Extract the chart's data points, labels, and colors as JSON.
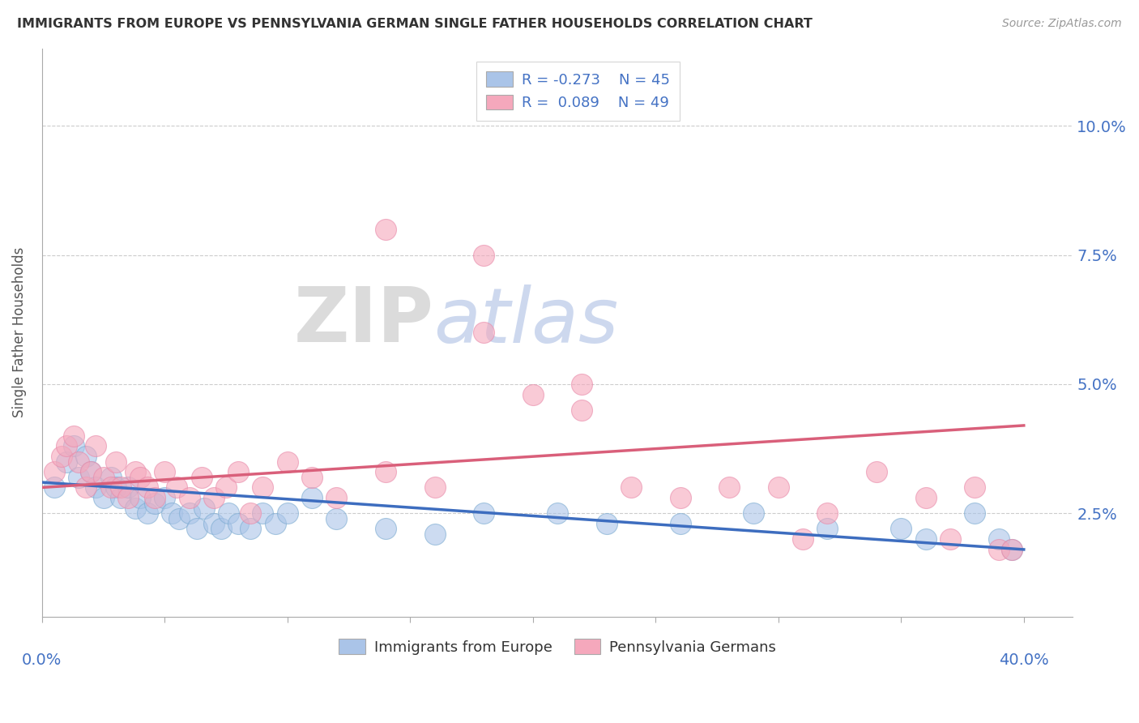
{
  "title": "IMMIGRANTS FROM EUROPE VS PENNSYLVANIA GERMAN SINGLE FATHER HOUSEHOLDS CORRELATION CHART",
  "source": "Source: ZipAtlas.com",
  "ylabel": "Single Father Households",
  "y_tick_labels": [
    "2.5%",
    "5.0%",
    "7.5%",
    "10.0%"
  ],
  "y_tick_values": [
    0.025,
    0.05,
    0.075,
    0.1
  ],
  "x_range": [
    0.0,
    0.42
  ],
  "y_range": [
    0.005,
    0.115
  ],
  "legend_blue_r": "R = -0.273",
  "legend_blue_n": "N = 45",
  "legend_pink_r": "R =  0.089",
  "legend_pink_n": "N = 49",
  "blue_color": "#aac4e8",
  "pink_color": "#f5a8bc",
  "blue_line_color": "#3d6dbf",
  "pink_line_color": "#d95f7a",
  "watermark_zip": "ZIP",
  "watermark_atlas": "atlas",
  "blue_scatter_x": [
    0.005,
    0.01,
    0.013,
    0.015,
    0.018,
    0.02,
    0.022,
    0.025,
    0.028,
    0.03,
    0.032,
    0.035,
    0.038,
    0.04,
    0.043,
    0.046,
    0.05,
    0.053,
    0.056,
    0.06,
    0.063,
    0.066,
    0.07,
    0.073,
    0.076,
    0.08,
    0.085,
    0.09,
    0.095,
    0.1,
    0.11,
    0.12,
    0.14,
    0.16,
    0.18,
    0.21,
    0.23,
    0.26,
    0.29,
    0.32,
    0.35,
    0.36,
    0.38,
    0.39,
    0.395
  ],
  "blue_scatter_y": [
    0.03,
    0.035,
    0.038,
    0.032,
    0.036,
    0.033,
    0.03,
    0.028,
    0.032,
    0.03,
    0.028,
    0.03,
    0.026,
    0.028,
    0.025,
    0.027,
    0.028,
    0.025,
    0.024,
    0.025,
    0.022,
    0.026,
    0.023,
    0.022,
    0.025,
    0.023,
    0.022,
    0.025,
    0.023,
    0.025,
    0.028,
    0.024,
    0.022,
    0.021,
    0.025,
    0.025,
    0.023,
    0.023,
    0.025,
    0.022,
    0.022,
    0.02,
    0.025,
    0.02,
    0.018
  ],
  "pink_scatter_x": [
    0.005,
    0.008,
    0.01,
    0.013,
    0.015,
    0.018,
    0.02,
    0.022,
    0.025,
    0.028,
    0.03,
    0.032,
    0.035,
    0.038,
    0.04,
    0.043,
    0.046,
    0.05,
    0.055,
    0.06,
    0.065,
    0.07,
    0.075,
    0.08,
    0.085,
    0.09,
    0.1,
    0.11,
    0.12,
    0.14,
    0.16,
    0.18,
    0.2,
    0.22,
    0.24,
    0.26,
    0.28,
    0.3,
    0.32,
    0.34,
    0.36,
    0.38,
    0.39,
    0.395,
    0.14,
    0.18,
    0.22,
    0.31,
    0.37
  ],
  "pink_scatter_y": [
    0.033,
    0.036,
    0.038,
    0.04,
    0.035,
    0.03,
    0.033,
    0.038,
    0.032,
    0.03,
    0.035,
    0.03,
    0.028,
    0.033,
    0.032,
    0.03,
    0.028,
    0.033,
    0.03,
    0.028,
    0.032,
    0.028,
    0.03,
    0.033,
    0.025,
    0.03,
    0.035,
    0.032,
    0.028,
    0.033,
    0.03,
    0.075,
    0.048,
    0.05,
    0.03,
    0.028,
    0.03,
    0.03,
    0.025,
    0.033,
    0.028,
    0.03,
    0.018,
    0.018,
    0.08,
    0.06,
    0.045,
    0.02,
    0.02
  ]
}
